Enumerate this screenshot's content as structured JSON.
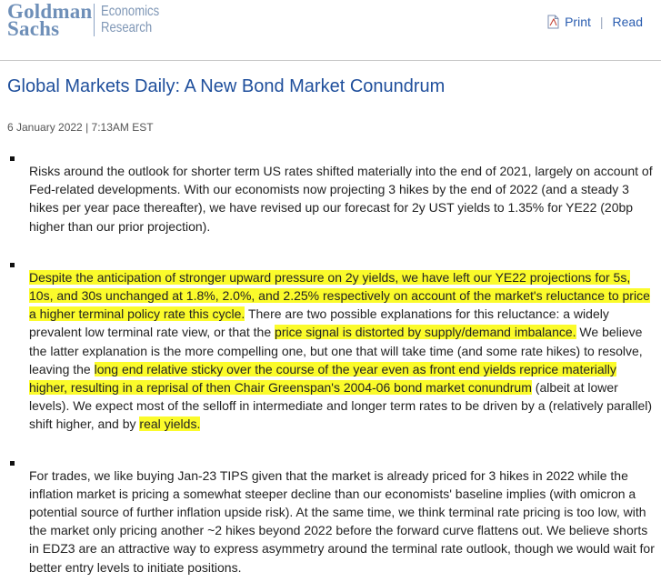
{
  "header": {
    "logo_line1": "Goldman",
    "logo_line2": "Sachs",
    "division_line1": "Economics",
    "division_line2": "Research",
    "print_label": "Print",
    "read_label": "Read",
    "separator": "|"
  },
  "article": {
    "title": "Global Markets Daily: A New Bond Market Conundrum",
    "date": "6 January 2022 | 7:13AM EST",
    "bullets": [
      {
        "segments": [
          {
            "text": "Risks around the outlook for shorter term US rates shifted materially into the end of 2021, largely on account of Fed-related developments. With our economists now projecting 3 hikes by the end of 2022 (and a steady 3 hikes per year pace thereafter), we have revised up our forecast for 2y UST yields to 1.35% for YE22 (20bp higher than our prior projection).",
            "highlight": false
          }
        ]
      },
      {
        "segments": [
          {
            "text": "Despite the anticipation of stronger upward pressure on 2y yields, we have left our YE22 projections for 5s, 10s, and 30s unchanged at 1.8%, 2.0%, and 2.25% respectively on account of the market's reluctance to price a higher terminal policy rate this cycle.",
            "highlight": true
          },
          {
            "text": " There are two possible explanations for this reluctance: a widely prevalent low terminal rate view, or that the ",
            "highlight": false
          },
          {
            "text": "price signal is distorted by supply/demand imbalance.",
            "highlight": true
          },
          {
            "text": " We believe the latter explanation is the more compelling one, but one that will take time (and some rate hikes) to resolve, leaving the ",
            "highlight": false
          },
          {
            "text": "long end relative sticky over the course of the year even as front end yields reprice materially higher, resulting in a reprisal of then Chair Greenspan's 2004-06 bond market conundrum",
            "highlight": true
          },
          {
            "text": " (albeit at lower levels). We expect most of the selloff in intermediate and longer term rates to be driven by a (relatively parallel) shift higher, and by ",
            "highlight": false
          },
          {
            "text": "real yields.",
            "highlight": true
          }
        ]
      },
      {
        "segments": [
          {
            "text": "For trades, we like buying Jan-23 TIPS given that the market is already priced for 3 hikes in 2022 while the inflation market is pricing a somewhat steeper decline than our economists' baseline implies (with omicron a potential source of further inflation upside risk). At the same time, we think terminal rate pricing is too low, with the market only pricing another ~2 hikes beyond 2022 before the forward curve flattens out. We believe shorts in EDZ3 are an attractive way to express asymmetry around the terminal rate outlook, though we would wait for better entry levels to initiate positions.",
            "highlight": false
          }
        ]
      }
    ]
  },
  "colors": {
    "highlight": "#fbfb2b",
    "title": "#1f4f9c",
    "link": "#2a5db0",
    "logo": "#6e8fb8"
  },
  "icons": {
    "print": "document-print-icon"
  }
}
